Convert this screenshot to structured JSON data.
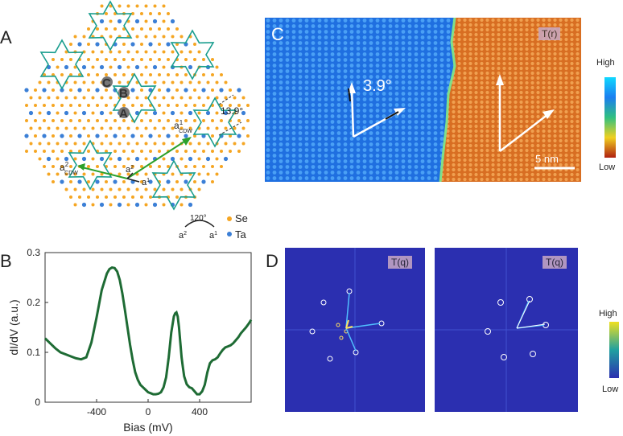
{
  "panels": {
    "a": {
      "letter": "A",
      "site_c": "C",
      "site_b": "B",
      "site_a": "A",
      "angle_label": "13.9°",
      "vec_a1": "a",
      "vec_a1_sup": "1",
      "vec_a2": "a",
      "vec_a2_sup": "2",
      "cdw1": "a",
      "cdw1_sup": "1",
      "cdw1_sub": "CDW",
      "cdw2": "a",
      "cdw2_sup": "2",
      "cdw2_sub": "CDW",
      "legend_angle": "120°",
      "legend_se": "Se",
      "legend_ta": "Ta",
      "colors": {
        "se": "#f5a623",
        "ta": "#3b7fd6",
        "star": "#1a9e8f",
        "cdw_arrow": "#2ca02c"
      }
    },
    "b": {
      "letter": "B"
    },
    "c": {
      "letter": "C",
      "tag": "T(r)",
      "angle": "3.9°",
      "scalebar": "5 nm",
      "colorbar_high": "High",
      "colorbar_low": "Low"
    },
    "d": {
      "letter": "D",
      "tag_left": "T(q)",
      "tag_right": "T(q)",
      "colorbar_high": "High",
      "colorbar_low": "Low"
    }
  },
  "chart_data": {
    "type": "line",
    "title": "",
    "xlabel": "Bias (mV)",
    "ylabel": "dI/dV (a.u.)",
    "xlim": [
      -800,
      800
    ],
    "ylim": [
      0,
      0.3
    ],
    "xticks": [
      -400,
      0,
      400
    ],
    "xtick_labels": [
      "-400",
      "0",
      "400"
    ],
    "yticks": [
      0,
      0.1,
      0.2,
      0.3
    ],
    "ytick_labels": [
      "0",
      "0.1",
      "0.2",
      "0.3"
    ],
    "series": [
      {
        "name": "dI/dV",
        "color": "#1e6b34",
        "x": [
          -800,
          -760,
          -720,
          -680,
          -640,
          -600,
          -560,
          -520,
          -480,
          -440,
          -400,
          -360,
          -320,
          -300,
          -280,
          -260,
          -240,
          -220,
          -200,
          -180,
          -160,
          -140,
          -120,
          -100,
          -80,
          -60,
          -40,
          -20,
          0,
          20,
          40,
          60,
          80,
          100,
          120,
          140,
          160,
          180,
          200,
          210,
          220,
          230,
          240,
          250,
          260,
          270,
          280,
          300,
          320,
          340,
          360,
          380,
          400,
          420,
          440,
          460,
          480,
          500,
          520,
          540,
          560,
          580,
          600,
          620,
          640,
          660,
          680,
          700,
          720,
          740,
          760,
          780,
          800
        ],
        "y": [
          0.128,
          0.118,
          0.108,
          0.1,
          0.096,
          0.092,
          0.088,
          0.086,
          0.09,
          0.12,
          0.17,
          0.225,
          0.258,
          0.267,
          0.27,
          0.269,
          0.262,
          0.245,
          0.218,
          0.185,
          0.15,
          0.115,
          0.085,
          0.06,
          0.045,
          0.035,
          0.03,
          0.025,
          0.02,
          0.018,
          0.016,
          0.016,
          0.017,
          0.02,
          0.03,
          0.05,
          0.09,
          0.14,
          0.172,
          0.178,
          0.18,
          0.172,
          0.15,
          0.12,
          0.09,
          0.07,
          0.052,
          0.036,
          0.03,
          0.028,
          0.022,
          0.016,
          0.016,
          0.022,
          0.035,
          0.06,
          0.078,
          0.084,
          0.086,
          0.09,
          0.098,
          0.105,
          0.11,
          0.112,
          0.114,
          0.118,
          0.124,
          0.13,
          0.138,
          0.144,
          0.15,
          0.157,
          0.165
        ]
      }
    ]
  }
}
